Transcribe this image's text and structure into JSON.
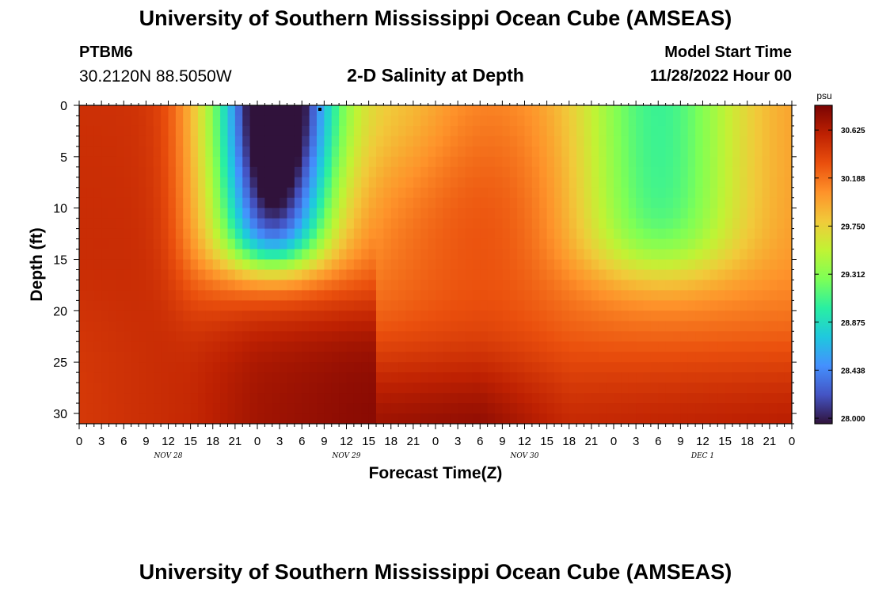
{
  "header": {
    "title": "University of Southern Mississippi Ocean Cube (AMSEAS)",
    "station_id": "PTBM6",
    "station_coords": "30.2120N  88.5050W",
    "subtitle": "2-D Salinity at Depth",
    "model_start_label": "Model Start Time",
    "model_start_value": "11/28/2022 Hour 00"
  },
  "footer": {
    "title": "University of Southern Mississippi Ocean Cube (AMSEAS)"
  },
  "chart_data": {
    "type": "heatmap",
    "title": "2-D Salinity at Depth",
    "xlabel": "Forecast Time(Z)",
    "ylabel": "Depth (ft)",
    "x_range": [
      0,
      96
    ],
    "y_range": [
      0,
      31
    ],
    "x_ticks": [
      0,
      3,
      6,
      9,
      12,
      15,
      18,
      21,
      24,
      27,
      30,
      33,
      36,
      39,
      42,
      45,
      48,
      51,
      54,
      57,
      60,
      63,
      66,
      69,
      72,
      75,
      78,
      81,
      84,
      87,
      90,
      93,
      96
    ],
    "x_tick_labels": [
      "0",
      "3",
      "6",
      "9",
      "12",
      "15",
      "18",
      "21",
      "0",
      "3",
      "6",
      "9",
      "12",
      "15",
      "18",
      "21",
      "0",
      "3",
      "6",
      "9",
      "12",
      "15",
      "18",
      "21",
      "0",
      "3",
      "6",
      "9",
      "12",
      "15",
      "18",
      "21",
      "0"
    ],
    "y_ticks": [
      0,
      5,
      10,
      15,
      20,
      25,
      30
    ],
    "y_tick_labels": [
      "0",
      "5",
      "10",
      "15",
      "20",
      "25",
      "30"
    ],
    "day_labels": [
      {
        "hour": 12,
        "label": "NOV 28"
      },
      {
        "hour": 36,
        "label": "NOV 29"
      },
      {
        "hour": 60,
        "label": "NOV 30"
      },
      {
        "hour": 84,
        "label": "DEC 1"
      }
    ],
    "colorbar": {
      "unit": "psu",
      "min": 27.95,
      "max": 30.85,
      "tick_values": [
        28.0,
        28.438,
        28.875,
        29.312,
        29.75,
        30.188,
        30.625
      ],
      "tick_labels": [
        "28.000",
        "28.438",
        "28.875",
        "29.312",
        "29.750",
        "30.188",
        "30.625"
      ],
      "colors": [
        "#30123b",
        "#4454c4",
        "#4490fe",
        "#1fc8de",
        "#29efa2",
        "#7dff56",
        "#c1f334",
        "#f1ca3a",
        "#fe922a",
        "#ea4f0d",
        "#be2102",
        "#7a0403"
      ]
    },
    "bottom_profile": [
      {
        "t": 0,
        "v": 30.45
      },
      {
        "t": 15,
        "v": 30.55
      },
      {
        "t": 24,
        "v": 30.7
      },
      {
        "t": 36,
        "v": 30.78
      },
      {
        "t": 54,
        "v": 30.85
      },
      {
        "t": 66,
        "v": 30.6
      },
      {
        "t": 96,
        "v": 30.68
      }
    ]
  }
}
